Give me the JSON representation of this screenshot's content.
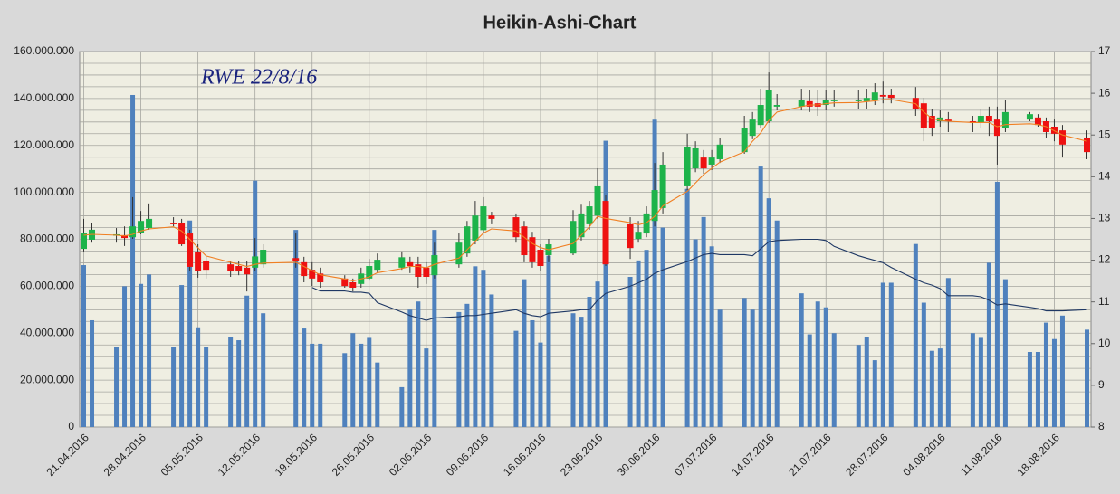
{
  "chart_data": {
    "type": "candlestick",
    "title": "Heikin-Ashi-Chart",
    "annotation": "RWE 22/8/16",
    "x": [
      "21.04.2016",
      "22.04.2016",
      "25.04.2016",
      "26.04.2016",
      "27.04.2016",
      "28.04.2016",
      "29.04.2016",
      "02.05.2016",
      "03.05.2016",
      "04.05.2016",
      "05.05.2016",
      "06.05.2016",
      "09.05.2016",
      "10.05.2016",
      "11.05.2016",
      "12.05.2016",
      "13.05.2016",
      "17.05.2016",
      "18.05.2016",
      "19.05.2016",
      "20.05.2016",
      "23.05.2016",
      "24.05.2016",
      "25.05.2016",
      "26.05.2016",
      "27.05.2016",
      "30.05.2016",
      "31.05.2016",
      "01.06.2016",
      "02.06.2016",
      "03.06.2016",
      "06.06.2016",
      "07.06.2016",
      "08.06.2016",
      "09.06.2016",
      "10.06.2016",
      "13.06.2016",
      "14.06.2016",
      "15.06.2016",
      "16.06.2016",
      "17.06.2016",
      "20.06.2016",
      "21.06.2016",
      "22.06.2016",
      "23.06.2016",
      "24.06.2016",
      "27.06.2016",
      "28.06.2016",
      "29.06.2016",
      "30.06.2016",
      "01.07.2016",
      "04.07.2016",
      "05.07.2016",
      "06.07.2016",
      "07.07.2016",
      "08.07.2016",
      "11.07.2016",
      "12.07.2016",
      "13.07.2016",
      "14.07.2016",
      "15.07.2016",
      "18.07.2016",
      "19.07.2016",
      "20.07.2016",
      "21.07.2016",
      "22.07.2016",
      "25.07.2016",
      "26.07.2016",
      "27.07.2016",
      "28.07.2016",
      "29.07.2016",
      "01.08.2016",
      "02.08.2016",
      "03.08.2016",
      "04.08.2016",
      "05.08.2016",
      "08.08.2016",
      "09.08.2016",
      "10.08.2016",
      "11.08.2016",
      "12.08.2016",
      "15.08.2016",
      "16.08.2016",
      "17.08.2016",
      "18.08.2016",
      "19.08.2016",
      "22.08.2016"
    ],
    "candles": {
      "axis": "y2",
      "up_color": "#1db34a",
      "down_color": "#ee1111",
      "wick_color": "#333333",
      "open": [
        12.27,
        12.49,
        12.6,
        12.6,
        12.55,
        12.66,
        12.77,
        12.9,
        12.9,
        12.64,
        12.2,
        11.99,
        11.9,
        11.86,
        11.82,
        11.82,
        11.9,
        12.05,
        11.95,
        11.77,
        11.68,
        11.56,
        11.47,
        11.43,
        11.56,
        11.77,
        11.82,
        11.95,
        11.9,
        11.82,
        11.64,
        11.9,
        12.16,
        12.47,
        12.72,
        13.07,
        13.03,
        12.81,
        12.55,
        12.25,
        12.12,
        12.16,
        12.55,
        12.86,
        13.07,
        13.42,
        12.86,
        12.51,
        12.64,
        12.94,
        13.25,
        13.77,
        14.2,
        14.46,
        14.29,
        14.42,
        14.59,
        14.98,
        15.24,
        15.33,
        15.68,
        15.68,
        15.81,
        15.76,
        15.72,
        15.81,
        15.81,
        15.81,
        15.85,
        15.96,
        15.96,
        15.89,
        15.76,
        15.46,
        15.33,
        15.37,
        15.33,
        15.29,
        15.46,
        15.37,
        15.16,
        15.37,
        15.42,
        15.33,
        15.2,
        15.11,
        14.94
      ],
      "high": [
        12.99,
        12.9,
        12.77,
        12.81,
        13.51,
        13.18,
        13.36,
        13.03,
        12.99,
        12.73,
        12.38,
        12.08,
        11.99,
        11.99,
        11.99,
        12.53,
        12.38,
        12.64,
        12.08,
        11.95,
        11.82,
        11.64,
        11.56,
        11.82,
        12.03,
        12.16,
        12.21,
        12.08,
        12.08,
        11.95,
        12.42,
        12.64,
        12.94,
        13.42,
        13.51,
        13.16,
        13.12,
        12.94,
        12.68,
        12.38,
        12.51,
        13.2,
        13.33,
        13.42,
        14.2,
        13.57,
        13.03,
        12.94,
        13.29,
        14.33,
        14.59,
        15.03,
        14.85,
        14.64,
        14.64,
        14.94,
        15.46,
        15.55,
        16.11,
        16.5,
        15.98,
        16.11,
        16.07,
        16.07,
        16.07,
        16.07,
        16.07,
        16.11,
        16.24,
        16.28,
        16.11,
        16.15,
        15.89,
        15.63,
        15.59,
        15.55,
        15.46,
        15.63,
        15.68,
        15.68,
        15.85,
        15.55,
        15.5,
        15.42,
        15.37,
        15.24,
        15.11
      ],
      "low": [
        12.21,
        12.42,
        12.42,
        12.34,
        12.51,
        12.62,
        12.73,
        12.81,
        12.34,
        11.73,
        11.58,
        11.56,
        11.6,
        11.64,
        11.25,
        11.73,
        11.82,
        11.82,
        11.47,
        11.38,
        11.34,
        11.34,
        11.25,
        11.34,
        11.51,
        11.69,
        11.77,
        11.69,
        11.34,
        11.43,
        11.56,
        11.82,
        12.08,
        12.38,
        12.64,
        12.86,
        12.42,
        11.95,
        11.82,
        11.73,
        11.95,
        12.12,
        12.47,
        12.73,
        12.99,
        11.86,
        12.03,
        12.42,
        12.55,
        12.81,
        13.12,
        13.68,
        14.11,
        14.07,
        14.16,
        14.33,
        14.55,
        14.9,
        15.16,
        15.29,
        15.59,
        15.59,
        15.55,
        15.46,
        15.59,
        15.68,
        15.63,
        15.63,
        15.72,
        15.76,
        15.76,
        15.46,
        14.85,
        14.98,
        15.2,
        15.07,
        15.07,
        15.16,
        14.98,
        14.29,
        15.07,
        15.33,
        15.2,
        14.94,
        14.85,
        14.46,
        14.42
      ],
      "close": [
        12.64,
        12.73,
        12.62,
        12.53,
        12.81,
        12.94,
        12.99,
        12.86,
        12.38,
        11.84,
        11.73,
        11.77,
        11.73,
        11.73,
        11.66,
        12.09,
        12.25,
        11.99,
        11.62,
        11.56,
        11.47,
        11.38,
        11.34,
        11.68,
        11.86,
        12.01,
        12.07,
        11.86,
        11.6,
        11.6,
        12.12,
        12.42,
        12.81,
        13.07,
        13.29,
        12.99,
        12.55,
        12.12,
        11.95,
        11.86,
        12.38,
        12.94,
        13.12,
        13.29,
        13.77,
        11.9,
        12.29,
        12.68,
        13.12,
        13.68,
        14.29,
        14.72,
        14.68,
        14.2,
        14.46,
        14.77,
        15.16,
        15.37,
        15.72,
        16.07,
        15.72,
        15.85,
        15.68,
        15.68,
        15.85,
        15.85,
        15.85,
        15.89,
        16.02,
        15.92,
        15.89,
        15.63,
        15.16,
        15.16,
        15.42,
        15.33,
        15.29,
        15.46,
        15.33,
        14.98,
        15.55,
        15.5,
        15.24,
        15.07,
        15.03,
        14.77,
        14.59
      ]
    },
    "volume": {
      "axis": "y",
      "color": "#4f81bd",
      "values": [
        69000000,
        45500000,
        34000000,
        60000000,
        141500000,
        61000000,
        65000000,
        34000000,
        60500000,
        88000000,
        42500000,
        34000000,
        38500000,
        37000000,
        56000000,
        105000000,
        48500000,
        84000000,
        42000000,
        35500000,
        35500000,
        31500000,
        40000000,
        35500000,
        38000000,
        27500000,
        17000000,
        50000000,
        53500000,
        33500000,
        84000000,
        49000000,
        52500000,
        68500000,
        67000000,
        56500000,
        41000000,
        63000000,
        45500000,
        36000000,
        73000000,
        48500000,
        47000000,
        55500000,
        62000000,
        122000000,
        64000000,
        71000000,
        75500000,
        131000000,
        85000000,
        101500000,
        80000000,
        89500000,
        77000000,
        50000000,
        55000000,
        50000000,
        111000000,
        97500000,
        88000000,
        57000000,
        39500000,
        53500000,
        51000000,
        40000000,
        35000000,
        38500000,
        28500000,
        61500000,
        61500000,
        78000000,
        53000000,
        32500000,
        33500000,
        63500000,
        40000000,
        38000000,
        70000000,
        104500000,
        63000000,
        32000000,
        32000000,
        44500000,
        37500000,
        47500000,
        41500000
      ]
    },
    "lines": [
      {
        "axis": "y",
        "color": "#1f3864",
        "values": [
          null,
          null,
          null,
          null,
          null,
          null,
          null,
          null,
          null,
          null,
          null,
          null,
          null,
          null,
          null,
          null,
          null,
          null,
          null,
          59500000,
          58000000,
          58000000,
          57500000,
          57500000,
          57000000,
          53000000,
          49000000,
          47500000,
          46500000,
          45500000,
          46500000,
          47000000,
          47500000,
          47500000,
          48000000,
          48500000,
          50000000,
          48500000,
          47500000,
          47000000,
          48500000,
          49500000,
          50000000,
          50000000,
          54000000,
          57000000,
          60000000,
          61500000,
          63000000,
          65500000,
          67000000,
          70500000,
          72000000,
          73500000,
          74000000,
          73500000,
          73500000,
          73000000,
          76000000,
          79000000,
          79500000,
          80000000,
          80000000,
          80000000,
          79500000,
          77000000,
          73000000,
          72000000,
          71000000,
          70000000,
          68000000,
          63000000,
          61500000,
          60500000,
          59000000,
          56000000,
          56000000,
          55500000,
          54000000,
          52000000,
          52500000,
          51000000,
          50500000,
          49500000,
          49500000,
          49500000,
          50000000
        ]
      },
      {
        "axis": "y2",
        "color": "#f07f22",
        "values": [
          12.6,
          12.62,
          12.6,
          12.58,
          12.62,
          12.7,
          12.75,
          12.8,
          12.7,
          12.5,
          12.3,
          12.1,
          11.95,
          11.9,
          11.85,
          11.9,
          11.93,
          11.95,
          11.85,
          11.75,
          11.65,
          11.55,
          11.5,
          11.55,
          11.6,
          11.7,
          11.8,
          11.85,
          11.85,
          11.82,
          11.9,
          12.05,
          12.25,
          12.45,
          12.65,
          12.75,
          12.7,
          12.55,
          12.4,
          12.3,
          12.25,
          12.4,
          12.6,
          12.8,
          13.05,
          13.0,
          12.9,
          12.85,
          12.9,
          13.05,
          13.3,
          13.65,
          13.85,
          14.05,
          14.2,
          14.35,
          14.6,
          14.85,
          15.05,
          15.35,
          15.55,
          15.68,
          15.72,
          15.72,
          15.75,
          15.77,
          15.78,
          15.8,
          15.82,
          15.85,
          15.85,
          15.75,
          15.55,
          15.4,
          15.35,
          15.33,
          15.3,
          15.3,
          15.3,
          15.2,
          15.25,
          15.27,
          15.25,
          15.2,
          15.1,
          15.0,
          14.85
        ]
      }
    ],
    "xlim": [
      "21.04.2016",
      "22.08.2016"
    ],
    "xticks": [
      "21.04.2016",
      "28.04.2016",
      "05.05.2016",
      "12.05.2016",
      "19.05.2016",
      "26.05.2016",
      "02.06.2016",
      "09.06.2016",
      "16.06.2016",
      "23.06.2016",
      "30.06.2016",
      "07.07.2016",
      "14.07.2016",
      "21.07.2016",
      "28.07.2016",
      "04.08.2016",
      "11.08.2016",
      "18.08.2016"
    ],
    "ylim": [
      0,
      160000000
    ],
    "yticks": [
      0,
      {
        "value": 20000000,
        "label": "20.000.000"
      },
      {
        "value": 40000000,
        "label": "40.000.000"
      },
      {
        "value": 60000000,
        "label": "60.000.000"
      },
      {
        "value": 80000000,
        "label": "80.000.000"
      },
      {
        "value": 100000000,
        "label": "100.000.000"
      },
      {
        "value": 120000000,
        "label": "120.000.000"
      },
      {
        "value": 140000000,
        "label": "140.000.000"
      },
      {
        "value": 160000000,
        "label": "160.000.000"
      }
    ],
    "ygrid": [
      0,
      5000000,
      10000000,
      15000000,
      20000000,
      25000000,
      30000000,
      35000000,
      40000000,
      45000000,
      50000000,
      55000000,
      60000000,
      65000000,
      70000000,
      75000000,
      80000000,
      85000000,
      90000000,
      95000000,
      100000000,
      105000000,
      110000000,
      115000000,
      120000000,
      125000000,
      130000000,
      135000000,
      140000000,
      145000000,
      150000000,
      155000000,
      160000000
    ],
    "y2lim": [
      8,
      17
    ],
    "y2ticks": [
      8,
      9,
      10,
      11,
      12,
      13,
      14,
      15,
      16,
      17
    ],
    "grid": true
  }
}
